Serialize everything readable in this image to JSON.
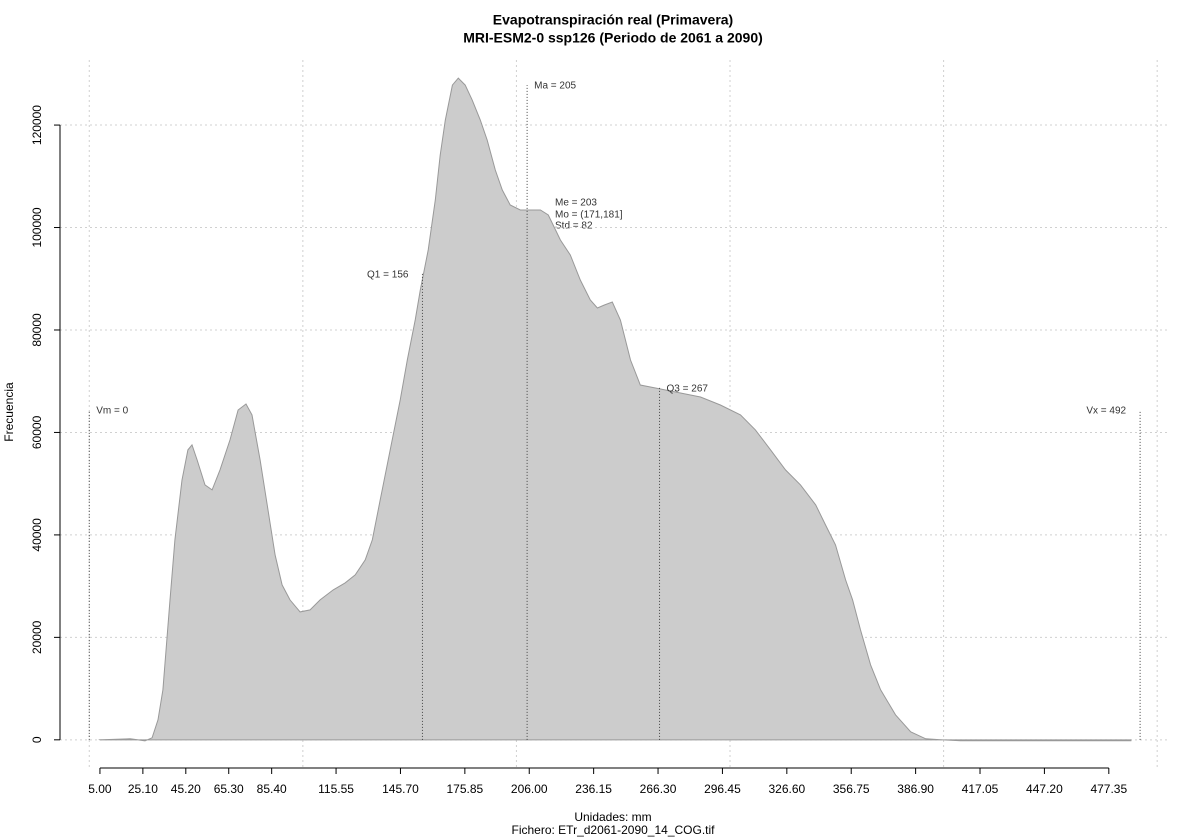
{
  "chart_data": {
    "type": "area",
    "title": "Evapotranspiración real (Primavera)",
    "subtitle": "MRI-ESM2-0 ssp126 (Periodo de 2061 a 2090)",
    "x_label": "Unidades: mm",
    "file_label": "Fichero: ETr_d2061-2090_14_COG.tif",
    "y_label": "Frecuencia",
    "color": "#cccccc",
    "line_color": "#999999",
    "grid": true,
    "xlim": [
      -13.7,
      506
    ],
    "ylim": [
      -5500,
      132700
    ],
    "xgrid": [
      0,
      100,
      200,
      300,
      400,
      500
    ],
    "xticks": [
      {
        "value": 5,
        "label": "5.00"
      },
      {
        "value": 25.1,
        "label": "25.10"
      },
      {
        "value": 45.2,
        "label": "45.20"
      },
      {
        "value": 65.3,
        "label": "65.30"
      },
      {
        "value": 85.4,
        "label": "85.40"
      },
      {
        "value": 115.55,
        "label": "115.55"
      },
      {
        "value": 145.7,
        "label": "145.70"
      },
      {
        "value": 175.85,
        "label": "175.85"
      },
      {
        "value": 206,
        "label": "206.00"
      },
      {
        "value": 236.15,
        "label": "236.15"
      },
      {
        "value": 266.3,
        "label": "266.30"
      },
      {
        "value": 296.45,
        "label": "296.45"
      },
      {
        "value": 326.6,
        "label": "326.60"
      },
      {
        "value": 356.75,
        "label": "356.75"
      },
      {
        "value": 386.9,
        "label": "386.90"
      },
      {
        "value": 417.05,
        "label": "417.05"
      },
      {
        "value": 447.2,
        "label": "447.20"
      },
      {
        "value": 477.35,
        "label": "477.35"
      }
    ],
    "yticks": [
      0,
      20000,
      40000,
      60000,
      80000,
      100000,
      120000
    ],
    "x": [
      5.0,
      19.1,
      26.1,
      29.4,
      32.2,
      34.5,
      37.8,
      40.1,
      43.4,
      46.2,
      48.1,
      50.5,
      54.2,
      57.5,
      61.2,
      65.9,
      69.7,
      73.4,
      76.2,
      80.0,
      83.7,
      87.0,
      90.3,
      94.0,
      98.7,
      103.4,
      108.1,
      114.2,
      119.8,
      124.5,
      129.2,
      132.5,
      136.2,
      140.9,
      145.6,
      148.9,
      152.6,
      155.0,
      158.7,
      162.0,
      164.3,
      166.7,
      170.0,
      172.8,
      176.0,
      179.3,
      183.1,
      186.3,
      190.1,
      193.4,
      197.1,
      201.8,
      211.2,
      214.9,
      220.6,
      225.2,
      229.9,
      234.6,
      237.9,
      241.2,
      244.9,
      248.7,
      253.4,
      258.0,
      265.1,
      269.8,
      276.8,
      286.2,
      295.5,
      304.9,
      311.9,
      319.0,
      326.0,
      333.0,
      340.1,
      344.7,
      349.4,
      354.1,
      357.4,
      361.1,
      365.8,
      370.5,
      377.5,
      384.6,
      391.6,
      398.6,
      408.0,
      487.7
    ],
    "values": [
      0,
      195,
      -195,
      390,
      3902,
      9756,
      27317,
      39024,
      50732,
      56585,
      57561,
      54634,
      49756,
      48780,
      52683,
      58537,
      64390,
      65561,
      63415,
      54634,
      44878,
      36098,
      30244,
      27317,
      24976,
      25366,
      27317,
      29268,
      30634,
      32195,
      35122,
      39024,
      46829,
      56585,
      66341,
      74146,
      81951,
      87805,
      95610,
      105366,
      114146,
      120976,
      127805,
      129171,
      127805,
      124878,
      120976,
      117073,
      111220,
      107317,
      104390,
      103415,
      103415,
      102439,
      97561,
      94634,
      89756,
      85854,
      84293,
      84878,
      85463,
      81951,
      74146,
      69268,
      68683,
      68293,
      67707,
      66927,
      65366,
      63415,
      60488,
      56585,
      52683,
      49756,
      45854,
      41951,
      38049,
      31220,
      27317,
      21463,
      14634,
      9756,
      4878,
      1561,
      195,
      0,
      -195,
      -195
    ],
    "annotations": [
      {
        "label": "Vm = 0",
        "x": 0,
        "y": 64400
      },
      {
        "label": "Q1 = 156",
        "x": 156,
        "y": 91000
      },
      {
        "label": "Ma = 205",
        "x": 205,
        "y": 127800
      },
      {
        "label": "Q3 = 267",
        "x": 267,
        "y": 68700
      },
      {
        "label": "Vx = 492",
        "x": 492,
        "y": 64400
      }
    ],
    "stats": [
      "Me = 203",
      "Mo = (171,181]",
      "Std = 82"
    ]
  }
}
